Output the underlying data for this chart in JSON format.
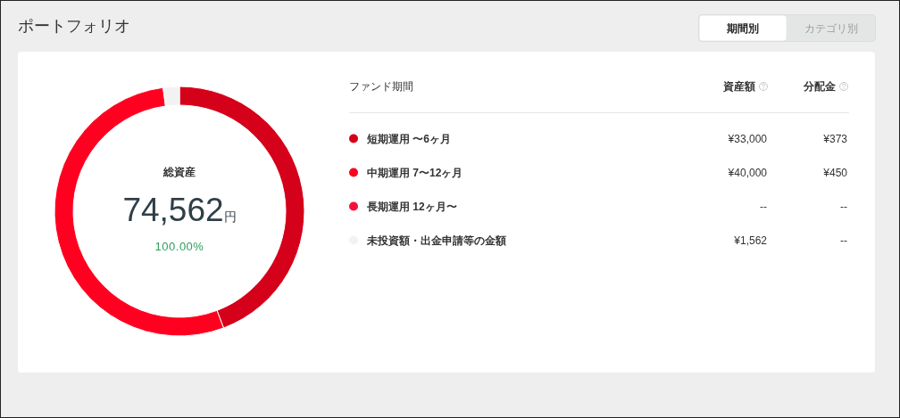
{
  "chart_data": {
    "type": "donut",
    "title": "ポートフォリオ",
    "legend_title": "ファンド期間",
    "categories": [
      "短期運用 〜6ヶ月",
      "中期運用 7〜12ヶ月",
      "長期運用 12ヶ月〜",
      "未投資額・出金申請等の金額"
    ],
    "values": [
      33000,
      40000,
      null,
      1562
    ],
    "colors": [
      "#d50019",
      "#ff0020",
      "#f5103c",
      "#f2f2f2"
    ],
    "value_labels": [
      "¥33,000",
      "¥40,000",
      "--",
      "¥1,562"
    ],
    "legend": "right",
    "annotations": [
      "総資産",
      "74,562円",
      "100.00%",
      "資産額",
      "分配金",
      "¥373",
      "¥450",
      "--",
      "--",
      "期間別",
      "カテゴリ別"
    ]
  }
}
